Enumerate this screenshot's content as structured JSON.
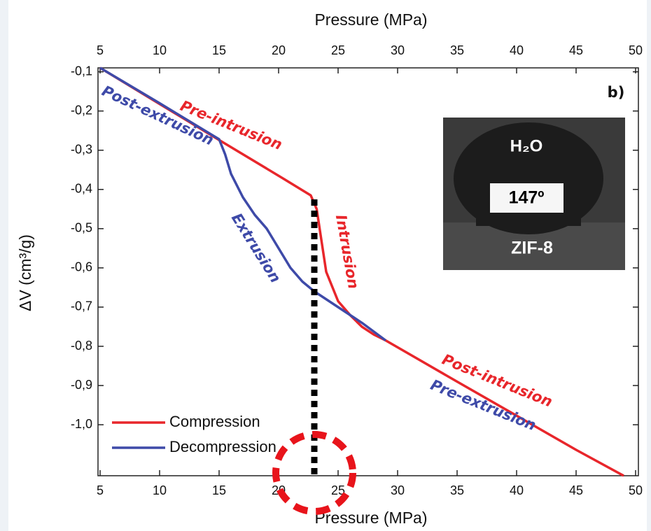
{
  "chart_data": {
    "type": "line",
    "xlabel": "Pressure (MPa)",
    "x2label": "Pressure (MPa)",
    "ylabel": "ΔV (cm³/g)",
    "xlim": [
      5,
      50
    ],
    "xticks": [
      5,
      10,
      15,
      20,
      25,
      30,
      35,
      40,
      45,
      50
    ],
    "ylim": [
      -1.13,
      -0.09
    ],
    "yticks": [
      {
        "value": -0.1,
        "label": "-0,1"
      },
      {
        "value": -0.2,
        "label": "-0,2"
      },
      {
        "value": -0.3,
        "label": "-0,3"
      },
      {
        "value": -0.4,
        "label": "-0,4"
      },
      {
        "value": -0.5,
        "label": "-0,5"
      },
      {
        "value": -0.6,
        "label": "-0,6"
      },
      {
        "value": -0.7,
        "label": "-0,7"
      },
      {
        "value": -0.8,
        "label": "-0,8"
      },
      {
        "value": -0.9,
        "label": "-0,9"
      },
      {
        "value": -1.0,
        "label": "-1,0"
      }
    ],
    "series": [
      {
        "name": "Compression",
        "color": "#e8262b",
        "x": [
          5,
          10,
          15,
          20,
          22.7,
          23.2,
          23.6,
          24,
          25,
          26,
          27,
          28,
          29,
          35,
          40,
          45,
          49
        ],
        "values": [
          -0.09,
          -0.182,
          -0.274,
          -0.365,
          -0.415,
          -0.45,
          -0.53,
          -0.61,
          -0.685,
          -0.72,
          -0.75,
          -0.77,
          -0.785,
          -0.89,
          -0.977,
          -1.064,
          -1.13
        ]
      },
      {
        "name": "Decompression",
        "color": "#3e4aa8",
        "x": [
          5,
          10,
          15,
          15.5,
          16,
          17,
          18,
          19,
          20,
          21,
          22,
          23,
          25,
          27,
          29
        ],
        "values": [
          -0.09,
          -0.18,
          -0.272,
          -0.31,
          -0.36,
          -0.42,
          -0.465,
          -0.5,
          -0.55,
          -0.6,
          -0.635,
          -0.66,
          -0.7,
          -0.74,
          -0.785
        ]
      }
    ],
    "vline": 23,
    "annotations": [
      {
        "text": "Pre-intrusion",
        "color": "#e8262b"
      },
      {
        "text": "Post-extrusion",
        "color": "#3e4aa8"
      },
      {
        "text": "Extrusion",
        "color": "#3e4aa8"
      },
      {
        "text": "Intrusion",
        "color": "#e8262b"
      },
      {
        "text": "Post-intrusion",
        "color": "#e8262b"
      },
      {
        "text": "Pre-extrusion",
        "color": "#3e4aa8"
      },
      {
        "text": "b)",
        "color": "#111111"
      }
    ],
    "inset": {
      "liquid": "H₂O",
      "angle": "147º",
      "substrate": "ZIF-8"
    }
  }
}
